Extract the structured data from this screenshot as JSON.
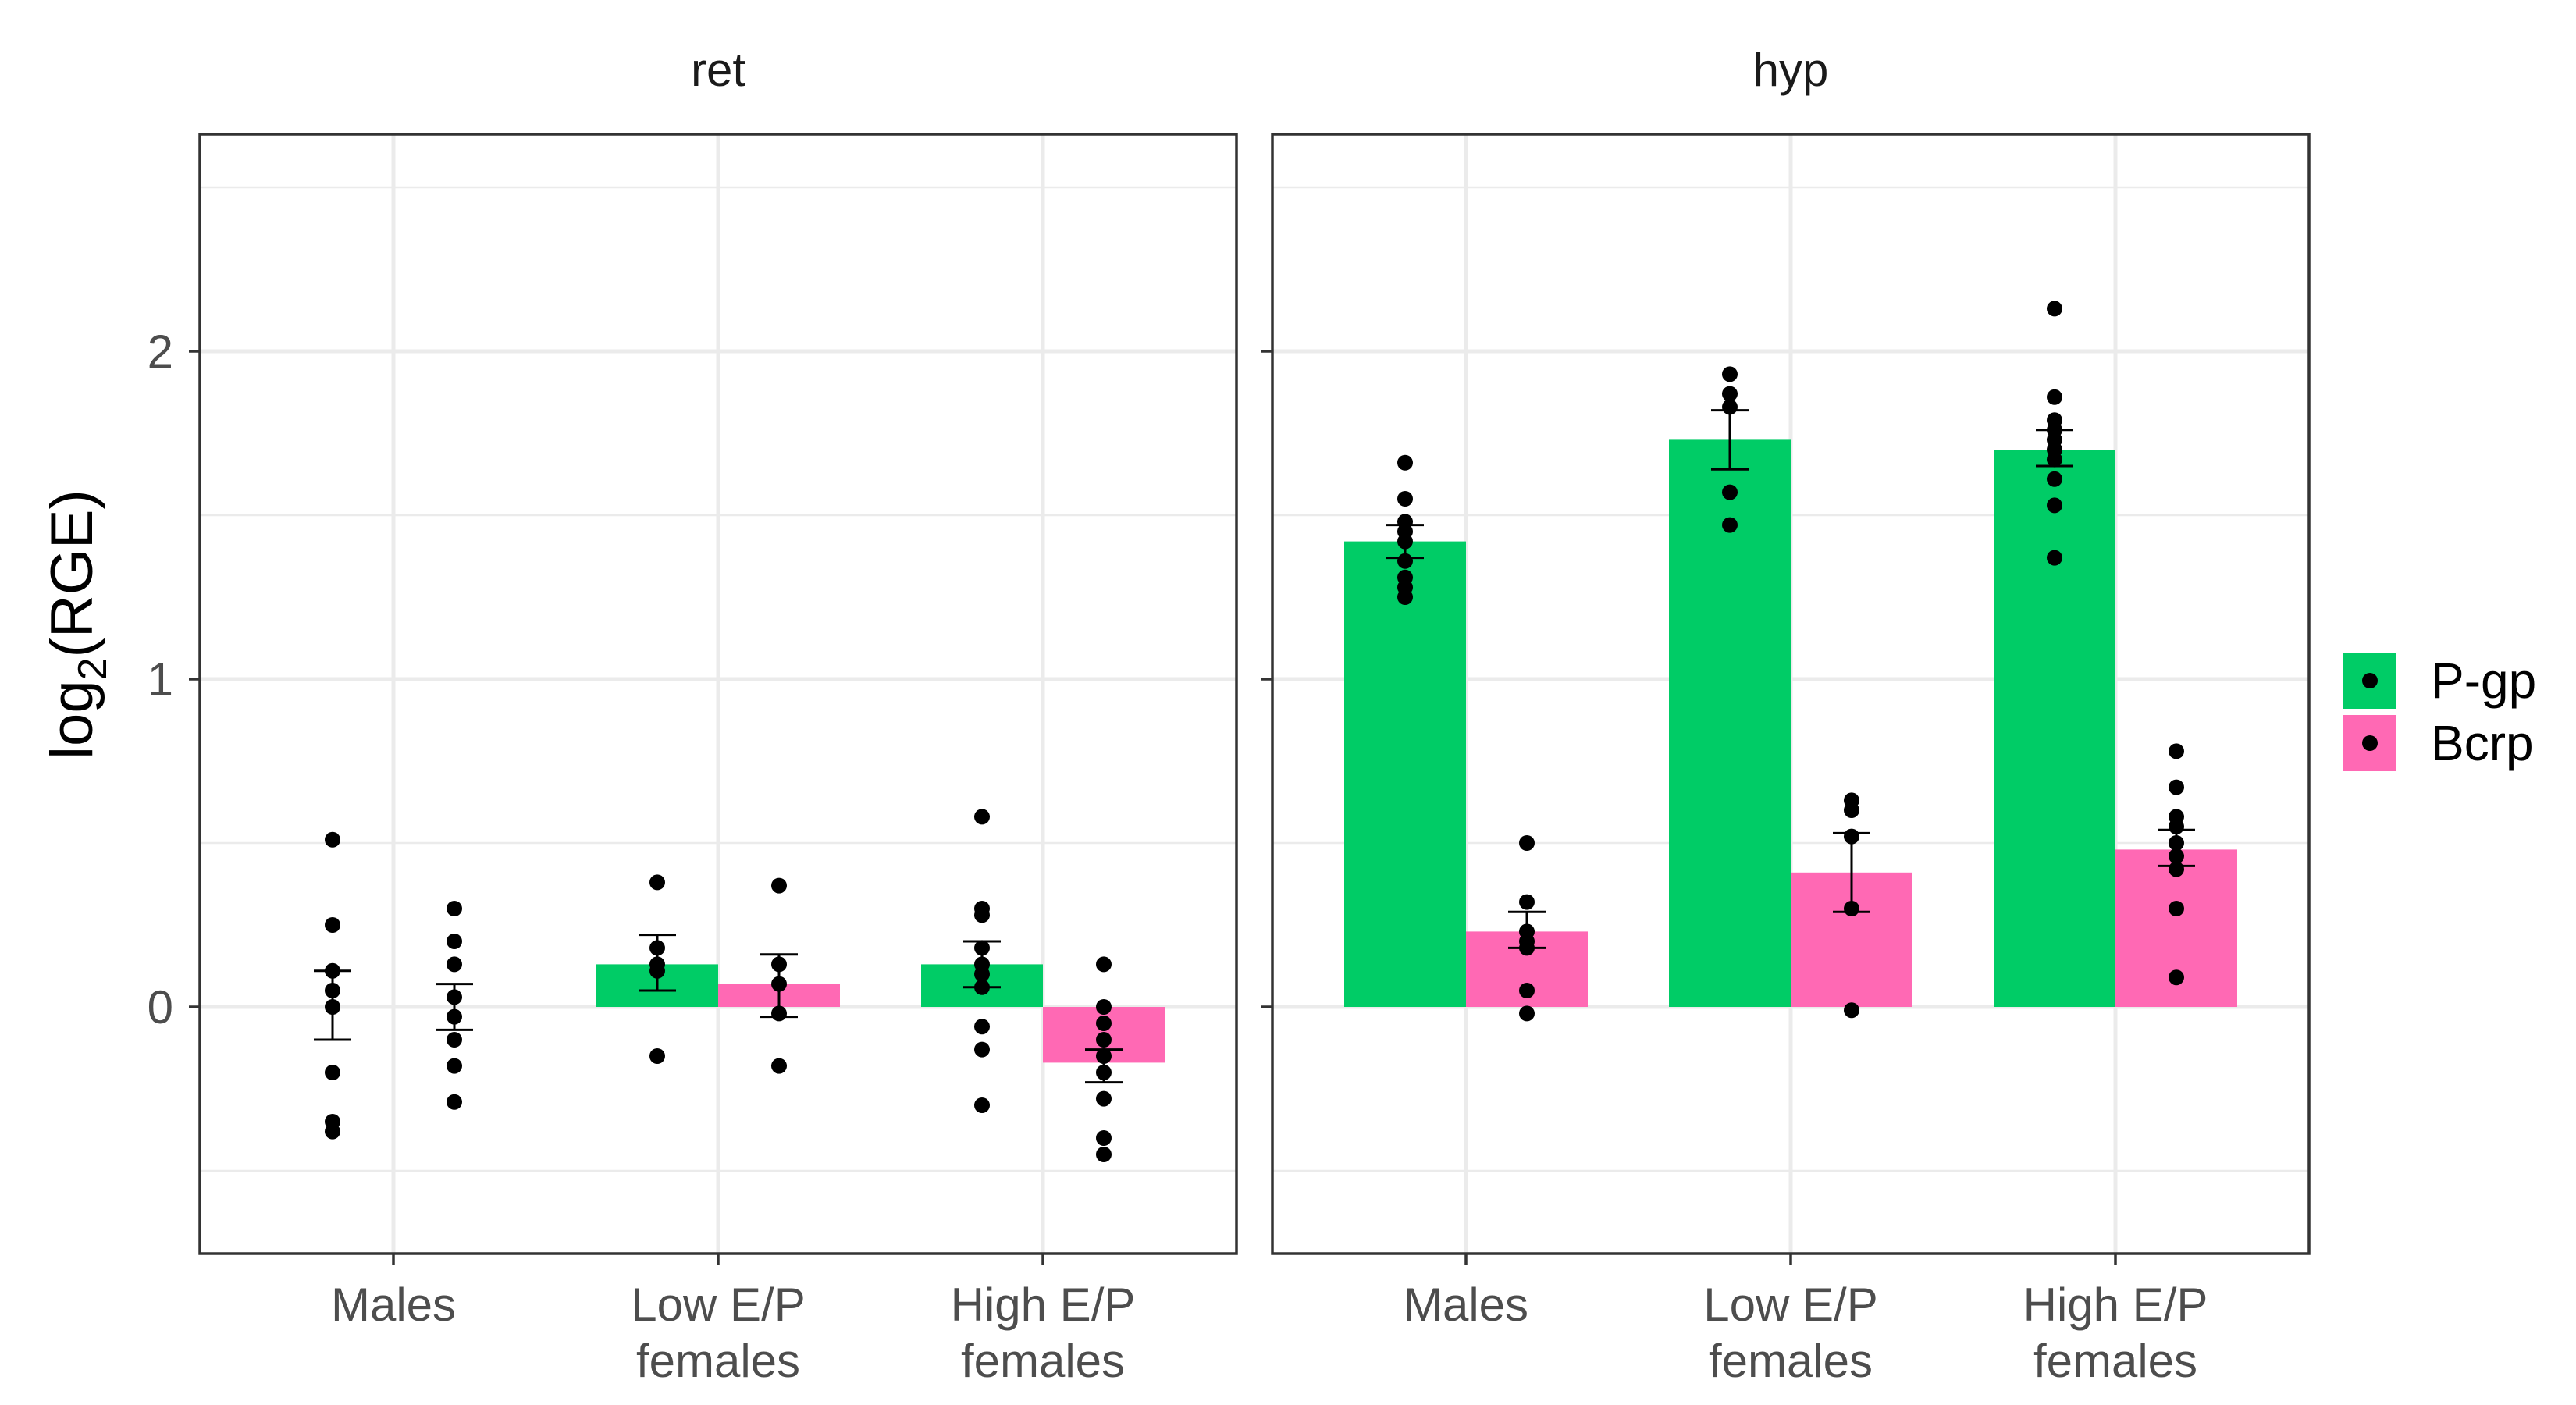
{
  "chart_data": {
    "type": "bar",
    "ylabel": "log2(RGE)",
    "ylabel_parts": {
      "main": "log",
      "sub": "2",
      "rest": "(RGE)"
    },
    "categories": [
      [
        "Males"
      ],
      [
        "Low E/P",
        "females"
      ],
      [
        "High E/P",
        "females"
      ]
    ],
    "y_ticks": [
      "0",
      "1",
      "2"
    ],
    "ylim": [
      -0.75,
      2.65
    ],
    "grid": true,
    "legend_position": "right",
    "series": [
      {
        "name": "P-gp",
        "color": "#00CC66"
      },
      {
        "name": "Bcrp",
        "color": "#FF69B4"
      }
    ],
    "panels": [
      {
        "title": "ret",
        "groups": [
          {
            "category": "Males",
            "bars": [
              {
                "series": "P-gp",
                "value": 0.0,
                "se_low": -0.1,
                "se_high": 0.11,
                "points": [
                  0.51,
                  0.25,
                  0.11,
                  0.05,
                  0.0,
                  -0.2,
                  -0.35,
                  -0.38
                ]
              },
              {
                "series": "Bcrp",
                "value": 0.0,
                "se_low": -0.07,
                "se_high": 0.07,
                "points": [
                  0.3,
                  0.2,
                  0.13,
                  0.03,
                  -0.03,
                  -0.1,
                  -0.18,
                  -0.29
                ]
              }
            ]
          },
          {
            "category": "Low E/P females",
            "bars": [
              {
                "series": "P-gp",
                "value": 0.13,
                "se_low": 0.05,
                "se_high": 0.22,
                "points": [
                  0.38,
                  0.18,
                  0.13,
                  0.11,
                  -0.15
                ]
              },
              {
                "series": "Bcrp",
                "value": 0.07,
                "se_low": -0.03,
                "se_high": 0.16,
                "points": [
                  0.37,
                  0.13,
                  0.07,
                  -0.02,
                  -0.18
                ]
              }
            ]
          },
          {
            "category": "High E/P females",
            "bars": [
              {
                "series": "P-gp",
                "value": 0.13,
                "se_low": 0.06,
                "se_high": 0.2,
                "points": [
                  0.58,
                  0.3,
                  0.28,
                  0.18,
                  0.13,
                  0.1,
                  0.06,
                  -0.06,
                  -0.13,
                  -0.3
                ]
              },
              {
                "series": "Bcrp",
                "value": -0.17,
                "se_low": -0.23,
                "se_high": -0.13,
                "points": [
                  0.13,
                  0.0,
                  -0.05,
                  -0.1,
                  -0.15,
                  -0.2,
                  -0.28,
                  -0.4,
                  -0.45
                ]
              }
            ]
          }
        ]
      },
      {
        "title": "hyp",
        "groups": [
          {
            "category": "Males",
            "bars": [
              {
                "series": "P-gp",
                "value": 1.42,
                "se_low": 1.37,
                "se_high": 1.47,
                "points": [
                  1.66,
                  1.55,
                  1.48,
                  1.45,
                  1.42,
                  1.36,
                  1.31,
                  1.28,
                  1.25
                ]
              },
              {
                "series": "Bcrp",
                "value": 0.23,
                "se_low": 0.18,
                "se_high": 0.29,
                "points": [
                  0.5,
                  0.32,
                  0.23,
                  0.2,
                  0.18,
                  0.05,
                  -0.02
                ]
              }
            ]
          },
          {
            "category": "Low E/P females",
            "bars": [
              {
                "series": "P-gp",
                "value": 1.73,
                "se_low": 1.64,
                "se_high": 1.82,
                "points": [
                  1.93,
                  1.87,
                  1.83,
                  1.57,
                  1.47
                ]
              },
              {
                "series": "Bcrp",
                "value": 0.41,
                "se_low": 0.29,
                "se_high": 0.53,
                "points": [
                  0.63,
                  0.6,
                  0.52,
                  0.3,
                  -0.01
                ]
              }
            ]
          },
          {
            "category": "High E/P females",
            "bars": [
              {
                "series": "P-gp",
                "value": 1.7,
                "se_low": 1.65,
                "se_high": 1.76,
                "points": [
                  2.13,
                  1.86,
                  1.79,
                  1.76,
                  1.73,
                  1.7,
                  1.67,
                  1.61,
                  1.53,
                  1.37
                ]
              },
              {
                "series": "Bcrp",
                "value": 0.48,
                "se_low": 0.43,
                "se_high": 0.54,
                "points": [
                  0.78,
                  0.67,
                  0.58,
                  0.55,
                  0.5,
                  0.46,
                  0.42,
                  0.3,
                  0.09
                ]
              }
            ]
          }
        ]
      }
    ]
  }
}
